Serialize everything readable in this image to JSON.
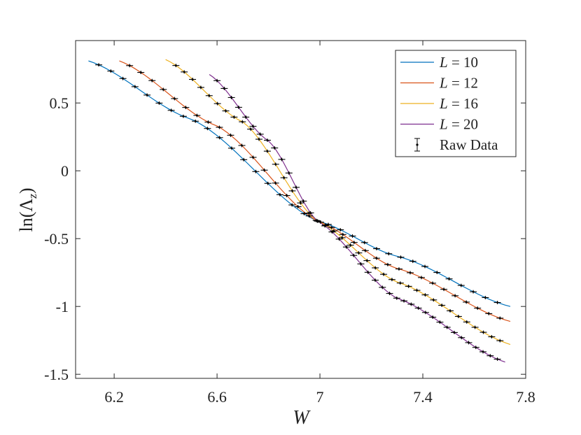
{
  "chart_data": {
    "type": "line",
    "xlabel": "W",
    "ylabel": "ln(Λz)",
    "xlim": [
      6.05,
      7.8
    ],
    "ylim": [
      -1.53,
      0.96
    ],
    "xticks": [
      6.2,
      6.6,
      7,
      7.4,
      7.8
    ],
    "xtick_labels": [
      "6.2",
      "6.6",
      "7",
      "7.4",
      "7.8"
    ],
    "yticks": [
      0.5,
      0,
      -0.5,
      -1,
      -1.5
    ],
    "ytick_labels": [
      "0.5",
      "0",
      "-0.5",
      "-1",
      "-1.5"
    ],
    "grid": false,
    "legend_position": "top-right",
    "crossing_point": [
      6.99,
      -0.37
    ],
    "series": [
      {
        "name": "L = 10",
        "L": "10",
        "color": "#0072bd",
        "w_range": [
          6.1,
          7.74
        ],
        "curve": [
          [
            6.1,
            0.81
          ],
          [
            6.5,
            0.38
          ],
          [
            6.99,
            -0.37
          ],
          [
            7.3,
            -0.63
          ],
          [
            7.74,
            -1.0
          ]
        ],
        "raw_range": [
          6.14,
          7.69
        ]
      },
      {
        "name": "L = 12",
        "L": "12",
        "color": "#d95319",
        "w_range": [
          6.22,
          7.74
        ],
        "curve": [
          [
            6.22,
            0.81
          ],
          [
            6.6,
            0.33
          ],
          [
            6.99,
            -0.37
          ],
          [
            7.3,
            -0.72
          ],
          [
            7.74,
            -1.11
          ]
        ],
        "raw_range": [
          6.26,
          7.7
        ]
      },
      {
        "name": "L = 16",
        "L": "16",
        "color": "#edb120",
        "w_range": [
          6.4,
          7.74
        ],
        "curve": [
          [
            6.4,
            0.82
          ],
          [
            6.7,
            0.36
          ],
          [
            6.99,
            -0.37
          ],
          [
            7.3,
            -0.82
          ],
          [
            7.74,
            -1.28
          ]
        ],
        "raw_range": [
          6.44,
          7.7
        ]
      },
      {
        "name": "L = 20",
        "L": "20",
        "color": "#7e2f8e",
        "w_range": [
          6.57,
          7.72
        ],
        "curve": [
          [
            6.57,
            0.71
          ],
          [
            6.8,
            0.22
          ],
          [
            6.99,
            -0.37
          ],
          [
            7.3,
            -0.94
          ],
          [
            7.72,
            -1.41
          ]
        ],
        "raw_range": [
          6.6,
          7.69
        ]
      }
    ],
    "raw_data": {
      "name": "Raw Data",
      "color": "#000000",
      "marker": "dot with error bars"
    }
  }
}
